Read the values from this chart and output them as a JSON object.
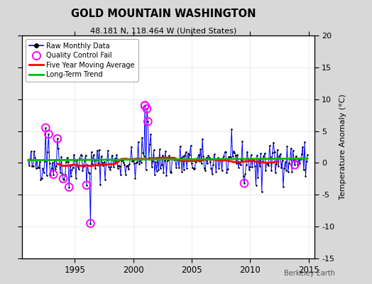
{
  "title": "GOLD MOUNTAIN WASHINGTON",
  "subtitle": "48.181 N, 118.464 W (United States)",
  "ylabel": "Temperature Anomaly (°C)",
  "watermark": "Berkeley Earth",
  "ylim": [
    -15,
    20
  ],
  "yticks": [
    -15,
    -10,
    -5,
    0,
    5,
    10,
    15,
    20
  ],
  "xlim": [
    1990.5,
    2015.5
  ],
  "xticks": [
    1995,
    2000,
    2005,
    2010,
    2015
  ],
  "bg_color": "#d8d8d8",
  "plot_bg_color": "#ffffff",
  "raw_color": "#0000ff",
  "dot_color": "#000000",
  "qc_color": "#ff00ff",
  "ma_color": "#ff0000",
  "trend_color": "#00bb00",
  "grid_color": "#c0c0c0",
  "seed": 42,
  "start_year": 1991.0,
  "end_year": 2015.0
}
